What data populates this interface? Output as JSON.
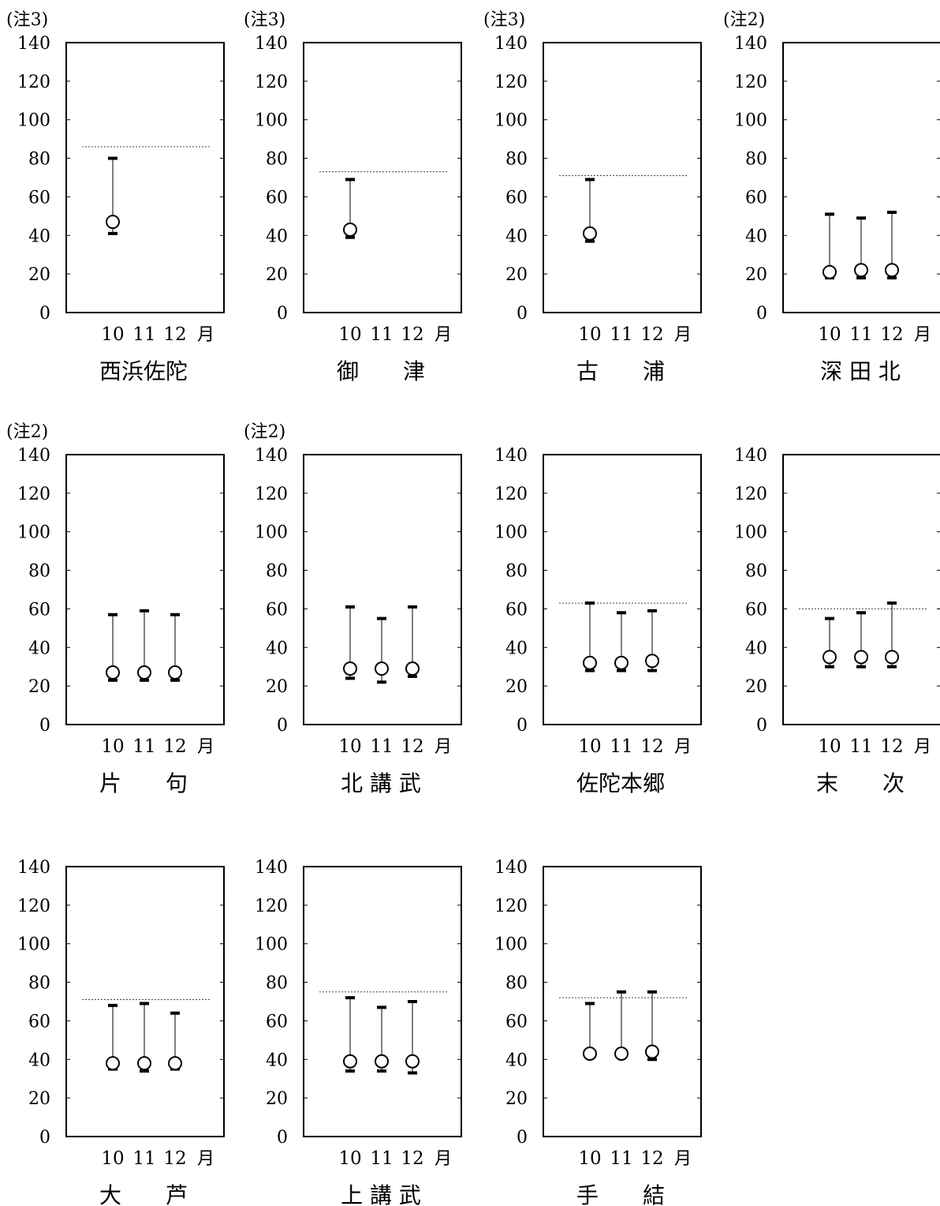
{
  "chart_data": [
    {
      "type": "range",
      "station": "西浜佐陀",
      "note": "(注3)",
      "y_ticks": [
        "0",
        "20",
        "40",
        "60",
        "80",
        "100",
        "120",
        "140"
      ],
      "x_ticks": [
        "10",
        "11",
        "12",
        "月"
      ],
      "ylim": [
        0,
        140
      ],
      "reference": 86,
      "points": [
        {
          "month": "10",
          "max": 80,
          "avg": 47,
          "min": 41
        }
      ]
    },
    {
      "type": "range",
      "station": "御　　津",
      "note": "(注3)",
      "y_ticks": [
        "0",
        "20",
        "40",
        "60",
        "80",
        "100",
        "120",
        "140"
      ],
      "x_ticks": [
        "10",
        "11",
        "12",
        "月"
      ],
      "ylim": [
        0,
        140
      ],
      "reference": 73,
      "points": [
        {
          "month": "10",
          "max": 69,
          "avg": 43,
          "min": 39
        }
      ]
    },
    {
      "type": "range",
      "station": "古　　浦",
      "note": "(注3)",
      "y_ticks": [
        "0",
        "20",
        "40",
        "60",
        "80",
        "100",
        "120",
        "140"
      ],
      "x_ticks": [
        "10",
        "11",
        "12",
        "月"
      ],
      "ylim": [
        0,
        140
      ],
      "reference": 71,
      "points": [
        {
          "month": "10",
          "max": 69,
          "avg": 41,
          "min": 37
        }
      ]
    },
    {
      "type": "range",
      "station": "深 田 北",
      "note": "(注2)",
      "y_ticks": [
        "0",
        "20",
        "40",
        "60",
        "80",
        "100",
        "120",
        "140"
      ],
      "x_ticks": [
        "10",
        "11",
        "12",
        "月"
      ],
      "ylim": [
        0,
        140
      ],
      "reference": null,
      "points": [
        {
          "month": "10",
          "max": 51,
          "avg": 21,
          "min": 18
        },
        {
          "month": "11",
          "max": 49,
          "avg": 22,
          "min": 18
        },
        {
          "month": "12",
          "max": 52,
          "avg": 22,
          "min": 18
        }
      ]
    },
    {
      "type": "range",
      "station": "片　　句",
      "note": "(注2)",
      "y_ticks": [
        "0",
        "20",
        "40",
        "60",
        "80",
        "100",
        "120",
        "140"
      ],
      "x_ticks": [
        "10",
        "11",
        "12",
        "月"
      ],
      "ylim": [
        0,
        140
      ],
      "reference": null,
      "points": [
        {
          "month": "10",
          "max": 57,
          "avg": 27,
          "min": 23
        },
        {
          "month": "11",
          "max": 59,
          "avg": 27,
          "min": 23
        },
        {
          "month": "12",
          "max": 57,
          "avg": 27,
          "min": 23
        }
      ]
    },
    {
      "type": "range",
      "station": "北 講 武",
      "note": "(注2)",
      "y_ticks": [
        "0",
        "20",
        "40",
        "60",
        "80",
        "100",
        "120",
        "140"
      ],
      "x_ticks": [
        "10",
        "11",
        "12",
        "月"
      ],
      "ylim": [
        0,
        140
      ],
      "reference": null,
      "points": [
        {
          "month": "10",
          "max": 61,
          "avg": 29,
          "min": 24
        },
        {
          "month": "11",
          "max": 55,
          "avg": 29,
          "min": 22
        },
        {
          "month": "12",
          "max": 61,
          "avg": 29,
          "min": 25
        }
      ]
    },
    {
      "type": "range",
      "station": "佐陀本郷",
      "note": "",
      "y_ticks": [
        "0",
        "20",
        "40",
        "60",
        "80",
        "100",
        "120",
        "140"
      ],
      "x_ticks": [
        "10",
        "11",
        "12",
        "月"
      ],
      "ylim": [
        0,
        140
      ],
      "reference": 63,
      "points": [
        {
          "month": "10",
          "max": 63,
          "avg": 32,
          "min": 28
        },
        {
          "month": "11",
          "max": 58,
          "avg": 32,
          "min": 28
        },
        {
          "month": "12",
          "max": 59,
          "avg": 33,
          "min": 28
        }
      ]
    },
    {
      "type": "range",
      "station": "末　　次",
      "note": "",
      "y_ticks": [
        "0",
        "20",
        "40",
        "60",
        "80",
        "100",
        "120",
        "140"
      ],
      "x_ticks": [
        "10",
        "11",
        "12",
        "月"
      ],
      "ylim": [
        0,
        140
      ],
      "reference": 60,
      "points": [
        {
          "month": "10",
          "max": 55,
          "avg": 35,
          "min": 30
        },
        {
          "month": "11",
          "max": 58,
          "avg": 35,
          "min": 30
        },
        {
          "month": "12",
          "max": 63,
          "avg": 35,
          "min": 30
        }
      ]
    },
    {
      "type": "range",
      "station": "大　　芦",
      "note": "",
      "y_ticks": [
        "0",
        "20",
        "40",
        "60",
        "80",
        "100",
        "120",
        "140"
      ],
      "x_ticks": [
        "10",
        "11",
        "12",
        "月"
      ],
      "ylim": [
        0,
        140
      ],
      "reference": 71,
      "points": [
        {
          "month": "10",
          "max": 68,
          "avg": 38,
          "min": 35
        },
        {
          "month": "11",
          "max": 69,
          "avg": 38,
          "min": 34
        },
        {
          "month": "12",
          "max": 64,
          "avg": 38,
          "min": 35
        }
      ]
    },
    {
      "type": "range",
      "station": "上 講 武",
      "note": "",
      "y_ticks": [
        "0",
        "20",
        "40",
        "60",
        "80",
        "100",
        "120",
        "140"
      ],
      "x_ticks": [
        "10",
        "11",
        "12",
        "月"
      ],
      "ylim": [
        0,
        140
      ],
      "reference": 75,
      "points": [
        {
          "month": "10",
          "max": 72,
          "avg": 39,
          "min": 34
        },
        {
          "month": "11",
          "max": 67,
          "avg": 39,
          "min": 34
        },
        {
          "month": "12",
          "max": 70,
          "avg": 39,
          "min": 33
        }
      ]
    },
    {
      "type": "range",
      "station": "手　　結",
      "note": "",
      "y_ticks": [
        "0",
        "20",
        "40",
        "60",
        "80",
        "100",
        "120",
        "140"
      ],
      "x_ticks": [
        "10",
        "11",
        "12",
        "月"
      ],
      "ylim": [
        0,
        140
      ],
      "reference": 72,
      "points": [
        {
          "month": "10",
          "max": 69,
          "avg": 43,
          "min": 41
        },
        {
          "month": "11",
          "max": 75,
          "avg": 43,
          "min": 41
        },
        {
          "month": "12",
          "max": 75,
          "avg": 44,
          "min": 40
        }
      ]
    }
  ]
}
